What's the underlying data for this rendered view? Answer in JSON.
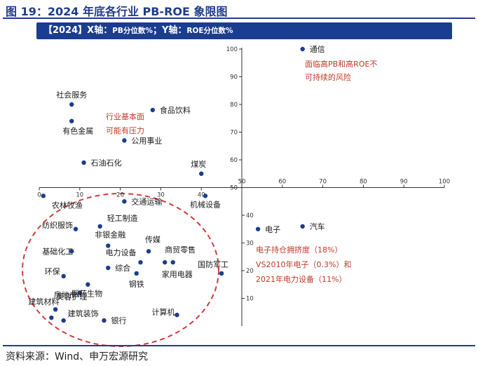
{
  "figure": {
    "title": "图 19：2024 年底各行业 PB-ROE 象限图",
    "subtitle_prefix": "【2024】X轴：",
    "subtitle_x_small": "PB分位数%",
    "subtitle_sep": "；Y轴：",
    "subtitle_y_small": "ROE分位数%",
    "source": "资料来源：Wind、申万宏源研究"
  },
  "colors": {
    "point": "#1b3d8f",
    "annotation": "#c0392b",
    "ellipse": "#d23a3a",
    "axis": "#333333",
    "banner": "#1b3d8f"
  },
  "chart_data": {
    "type": "scatter",
    "title": "【2024】X轴：PB分位数%；Y轴：ROE分位数%",
    "xlabel": "PB分位数%",
    "ylabel": "ROE分位数%",
    "xlim": [
      0,
      100
    ],
    "ylim": [
      0,
      100
    ],
    "axis_crossing": [
      50,
      50
    ],
    "x_ticks_left": [
      0,
      10,
      20,
      30,
      40,
      50
    ],
    "x_ticks_right": [
      50,
      60,
      70,
      80,
      90,
      100
    ],
    "y_ticks_top": [
      50,
      60,
      70,
      80,
      90,
      100
    ],
    "y_ticks_bottom": [
      10,
      20,
      30,
      40
    ],
    "points": [
      {
        "name": "通信",
        "x": 65,
        "y": 100
      },
      {
        "name": "社会服务",
        "x": 8,
        "y": 80
      },
      {
        "name": "食品饮料",
        "x": 28,
        "y": 78
      },
      {
        "name": "有色金属",
        "x": 8,
        "y": 74
      },
      {
        "name": "公用事业",
        "x": 21,
        "y": 67
      },
      {
        "name": "石油石化",
        "x": 11,
        "y": 59
      },
      {
        "name": "煤炭",
        "x": 40,
        "y": 55
      },
      {
        "name": "农林牧渔",
        "x": 1,
        "y": 47
      },
      {
        "name": "交通运输",
        "x": 21,
        "y": 45
      },
      {
        "name": "机械设备",
        "x": 41,
        "y": 47
      },
      {
        "name": "电子",
        "x": 54,
        "y": 35
      },
      {
        "name": "汽车",
        "x": 65,
        "y": 36
      },
      {
        "name": "轻工制造",
        "x": 15,
        "y": 36
      },
      {
        "name": "纺织服饰",
        "x": 9,
        "y": 35
      },
      {
        "name": "非银金融",
        "x": 17,
        "y": 29
      },
      {
        "name": "传媒",
        "x": 27,
        "y": 27
      },
      {
        "name": "基础化工",
        "x": 8,
        "y": 27
      },
      {
        "name": "商贸零售",
        "x": 31,
        "y": 23
      },
      {
        "name": "电力设备",
        "x": 25,
        "y": 23
      },
      {
        "name": "综合",
        "x": 17,
        "y": 21
      },
      {
        "name": "家用电器",
        "x": 33,
        "y": 23
      },
      {
        "name": "国防军工",
        "x": 45,
        "y": 19
      },
      {
        "name": "环保",
        "x": 6,
        "y": 18
      },
      {
        "name": "钢铁",
        "x": 24,
        "y": 19
      },
      {
        "name": "美容护理",
        "x": 12,
        "y": 15
      },
      {
        "name": "房地产",
        "x": 10,
        "y": 12
      },
      {
        "name": "医药生物",
        "x": 4,
        "y": 6
      },
      {
        "name": "建筑材料",
        "x": 3,
        "y": 3
      },
      {
        "name": "建筑装饰",
        "x": 6,
        "y": 2
      },
      {
        "name": "银行",
        "x": 16,
        "y": 2
      },
      {
        "name": "计算机",
        "x": 34,
        "y": 4
      }
    ],
    "annotations": [
      {
        "id": "telecom",
        "lines": [
          "面临高PB和高ROE不",
          "可持续的风险"
        ]
      },
      {
        "id": "lowpb",
        "lines": [
          "行业基本面",
          "可能有压力"
        ]
      },
      {
        "id": "electronics",
        "lines": [
          "电子持仓拥挤度（18%）",
          "VS2010年电子（0.3%）和",
          "2021年电力设备（11%）"
        ]
      }
    ]
  }
}
